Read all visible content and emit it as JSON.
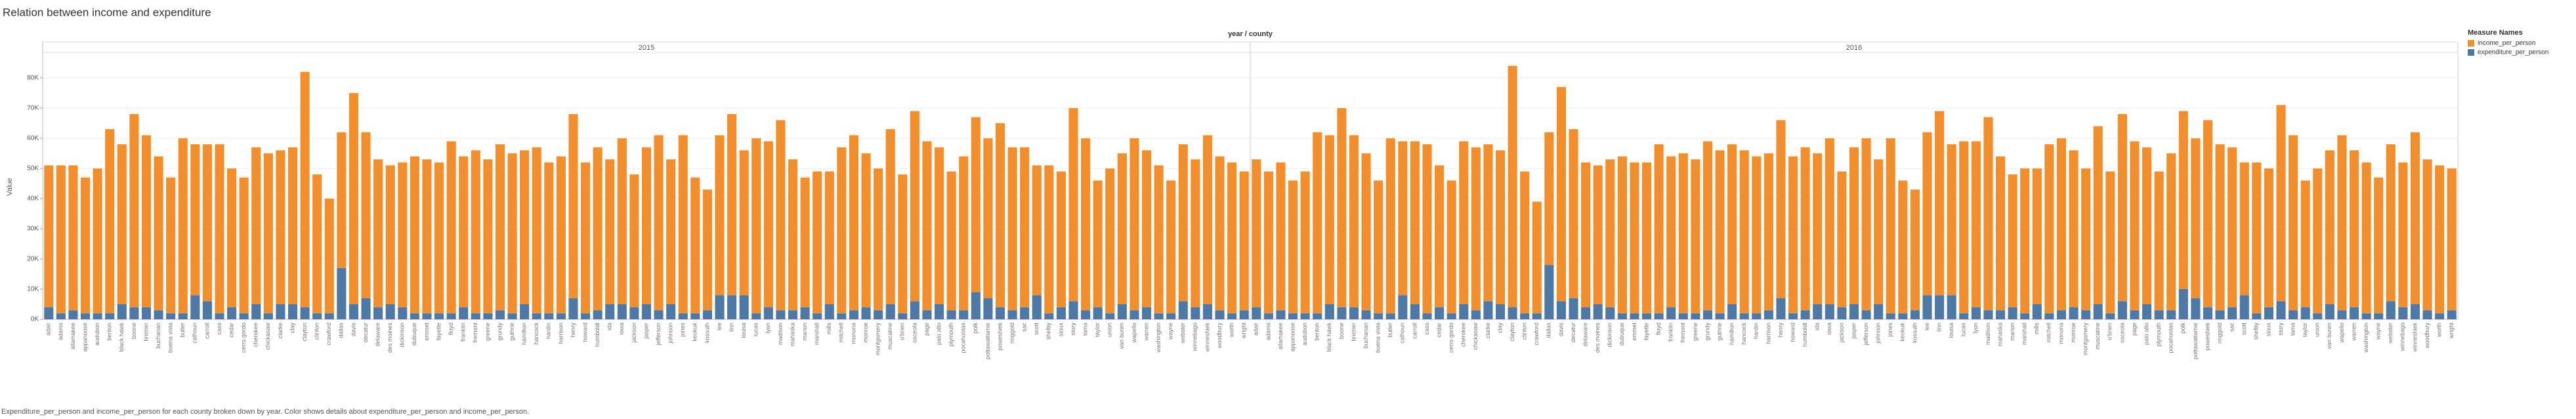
{
  "chart_data": {
    "type": "bar",
    "stacked": true,
    "title": "Relation between income and expenditure",
    "column_header": "year / county",
    "y_label": "Value",
    "caption": "Expenditure_per_person and income_per_person for each county broken down by year.  Color shows details about expenditure_per_person and income_per_person.",
    "legend_title": "Measure Names",
    "legend": "right",
    "panes": [
      "2015",
      "2016"
    ],
    "categories": [
      "adair",
      "adams",
      "allamakee",
      "appanoose",
      "audubon",
      "benton",
      "black hawk",
      "boone",
      "bremer",
      "buchanan",
      "buena vista",
      "butler",
      "calhoun",
      "carroll",
      "cass",
      "cedar",
      "cerro gordo",
      "cherokee",
      "chickasaw",
      "clarke",
      "clay",
      "clayton",
      "clinton",
      "crawford",
      "dallas",
      "davis",
      "decatur",
      "delaware",
      "des moines",
      "dickinson",
      "dubuque",
      "emmet",
      "fayette",
      "floyd",
      "franklin",
      "fremont",
      "greene",
      "grundy",
      "guthrie",
      "hamilton",
      "hancock",
      "hardin",
      "harrison",
      "henry",
      "howard",
      "humboldt",
      "ida",
      "iowa",
      "jackson",
      "jasper",
      "jefferson",
      "johnson",
      "jones",
      "keokuk",
      "kossuth",
      "lee",
      "linn",
      "louisa",
      "lucas",
      "lyon",
      "madison",
      "mahaska",
      "marion",
      "marshall",
      "mills",
      "mitchell",
      "monona",
      "monroe",
      "montgomery",
      "muscatine",
      "o'brien",
      "osceola",
      "page",
      "palo alto",
      "plymouth",
      "pocahontas",
      "polk",
      "pottawattamie",
      "poweshiek",
      "ringgold",
      "sac",
      "scott",
      "shelby",
      "sioux",
      "story",
      "tama",
      "taylor",
      "union",
      "van buren",
      "wapello",
      "warren",
      "washington",
      "wayne",
      "webster",
      "winnebago",
      "winneshiek",
      "woodbury",
      "worth",
      "wright"
    ],
    "series": [
      {
        "name": "income_per_person",
        "color": "#f28e2b",
        "values": [
          [
            47000,
            49000,
            48000,
            45000,
            48000,
            61000,
            53000,
            64000,
            57000,
            51000,
            45000,
            58000,
            50000,
            52000,
            56000,
            46000,
            45000,
            52000,
            53000,
            51000,
            52000,
            78000,
            46000,
            38000,
            45000,
            70000,
            55000,
            49000,
            46000,
            48000,
            52000,
            51000,
            50000,
            57000,
            50000,
            54000,
            51000,
            55000,
            53000,
            51000,
            55000,
            50000,
            52000,
            61000,
            50000,
            54000,
            48000,
            55000,
            44000,
            52000,
            58000,
            48000,
            59000,
            45000,
            40000,
            53000,
            60000,
            48000,
            58000,
            55000,
            63000,
            50000,
            43000,
            47000,
            44000,
            55000,
            58000,
            51000,
            47000,
            58000,
            46000,
            63000,
            56000,
            52000,
            46000,
            51000,
            58000,
            53000,
            61000,
            54000,
            53000,
            43000,
            49000,
            45000,
            64000,
            57000,
            42000,
            48000,
            50000,
            57000,
            52000,
            49000,
            44000,
            52000,
            49000,
            56000,
            51000,
            50000,
            46000
          ],
          [
            49000,
            47000,
            49000,
            44000,
            47000,
            60000,
            56000,
            66000,
            57000,
            52000,
            44000,
            58000,
            51000,
            54000,
            56000,
            47000,
            44000,
            54000,
            54000,
            52000,
            51000,
            80000,
            47000,
            37000,
            44000,
            71000,
            56000,
            48000,
            46000,
            49000,
            52000,
            50000,
            50000,
            56000,
            50000,
            53000,
            51000,
            56000,
            54000,
            53000,
            54000,
            52000,
            52000,
            59000,
            52000,
            54000,
            50000,
            55000,
            45000,
            52000,
            57000,
            48000,
            58000,
            44000,
            40000,
            54000,
            61000,
            50000,
            57000,
            55000,
            64000,
            51000,
            44000,
            48000,
            45000,
            56000,
            57000,
            52000,
            47000,
            59000,
            47000,
            62000,
            56000,
            52000,
            46000,
            52000,
            59000,
            53000,
            62000,
            55000,
            53000,
            44000,
            50000,
            46000,
            65000,
            58000,
            42000,
            48000,
            51000,
            58000,
            52000,
            50000,
            45000,
            52000,
            48000,
            57000,
            50000,
            49000,
            47000
          ]
        ]
      },
      {
        "name": "expenditure_per_person",
        "color": "#4e79a7",
        "values": [
          [
            4000,
            2000,
            3000,
            2000,
            2000,
            2000,
            5000,
            4000,
            4000,
            3000,
            2000,
            2000,
            8000,
            6000,
            2000,
            4000,
            2000,
            5000,
            2000,
            5000,
            5000,
            4000,
            2000,
            2000,
            17000,
            5000,
            7000,
            4000,
            5000,
            4000,
            2000,
            2000,
            2000,
            2000,
            4000,
            2000,
            2000,
            3000,
            2000,
            5000,
            2000,
            2000,
            2000,
            7000,
            2000,
            3000,
            5000,
            5000,
            4000,
            5000,
            3000,
            5000,
            2000,
            2000,
            3000,
            8000,
            8000,
            8000,
            2000,
            4000,
            3000,
            3000,
            4000,
            2000,
            5000,
            2000,
            3000,
            4000,
            3000,
            5000,
            2000,
            6000,
            3000,
            5000,
            3000,
            3000,
            9000,
            7000,
            4000,
            3000,
            4000,
            8000,
            2000,
            4000,
            6000,
            3000,
            4000,
            2000,
            5000,
            3000,
            4000,
            2000,
            2000,
            6000,
            4000,
            5000,
            3000,
            2000,
            3000
          ],
          [
            4000,
            2000,
            3000,
            2000,
            2000,
            2000,
            5000,
            4000,
            4000,
            3000,
            2000,
            2000,
            8000,
            5000,
            2000,
            4000,
            2000,
            5000,
            3000,
            6000,
            5000,
            4000,
            2000,
            2000,
            18000,
            6000,
            7000,
            4000,
            5000,
            4000,
            2000,
            2000,
            2000,
            2000,
            4000,
            2000,
            2000,
            3000,
            2000,
            5000,
            2000,
            2000,
            3000,
            7000,
            2000,
            3000,
            5000,
            5000,
            4000,
            5000,
            3000,
            5000,
            2000,
            2000,
            3000,
            8000,
            8000,
            8000,
            2000,
            4000,
            3000,
            3000,
            4000,
            2000,
            5000,
            2000,
            3000,
            4000,
            3000,
            5000,
            2000,
            6000,
            3000,
            5000,
            3000,
            3000,
            10000,
            7000,
            4000,
            3000,
            4000,
            8000,
            2000,
            4000,
            6000,
            3000,
            4000,
            2000,
            5000,
            3000,
            4000,
            2000,
            2000,
            6000,
            4000,
            5000,
            3000,
            2000,
            3000
          ]
        ]
      }
    ],
    "ylim": [
      0,
      88000
    ],
    "yticks": [
      {
        "value": 0,
        "label": "0K"
      },
      {
        "value": 10000,
        "label": "10K"
      },
      {
        "value": 20000,
        "label": "20K"
      },
      {
        "value": 30000,
        "label": "30K"
      },
      {
        "value": 40000,
        "label": "40K"
      },
      {
        "value": 50000,
        "label": "50K"
      },
      {
        "value": 60000,
        "label": "60K"
      },
      {
        "value": 70000,
        "label": "70K"
      },
      {
        "value": 80000,
        "label": "80K"
      }
    ],
    "grid": true
  }
}
